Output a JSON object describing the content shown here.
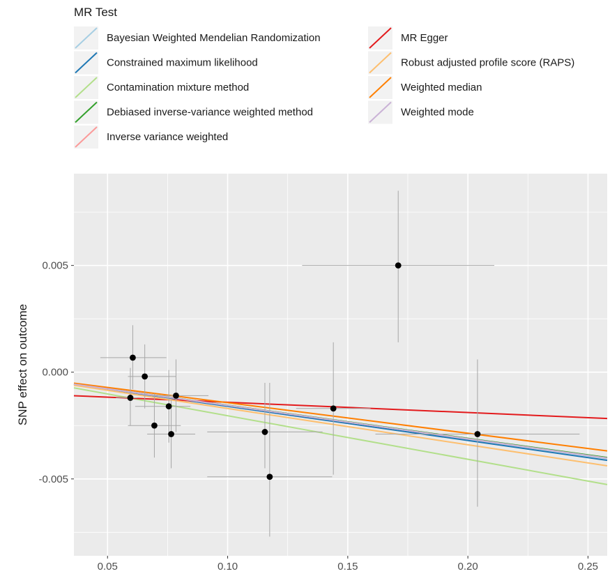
{
  "chart_data": {
    "type": "scatter",
    "title": "",
    "xlabel": "",
    "ylabel": "SNP effect on outcome",
    "xlim": [
      0.036,
      0.258
    ],
    "ylim": [
      -0.0086,
      0.0093
    ],
    "x_ticks": [
      0.05,
      0.1,
      0.15,
      0.2,
      0.25
    ],
    "x_tick_labels": [
      "0.05",
      "0.10",
      "0.15",
      "0.20",
      "0.25"
    ],
    "y_ticks": [
      -0.005,
      0.0,
      0.005
    ],
    "y_tick_labels": [
      "-0.005",
      "0.000",
      "0.005"
    ],
    "grid": true,
    "legend": {
      "title": "MR Test",
      "position": "top",
      "columns": 2
    },
    "points": [
      {
        "x": 0.0605,
        "y": 0.00068,
        "x_lo": 0.047,
        "x_hi": 0.0745,
        "y_lo": -0.0008,
        "y_hi": 0.0022
      },
      {
        "x": 0.0655,
        "y": -0.0002,
        "x_lo": 0.0585,
        "x_hi": 0.0785,
        "y_lo": -0.0017,
        "y_hi": 0.0013
      },
      {
        "x": 0.0595,
        "y": -0.0012,
        "x_lo": 0.0535,
        "x_hi": 0.0625,
        "y_lo": -0.0025,
        "y_hi": 0.0002
      },
      {
        "x": 0.0785,
        "y": -0.0011,
        "x_lo": 0.068,
        "x_hi": 0.092,
        "y_lo": -0.0028,
        "y_hi": 0.0006
      },
      {
        "x": 0.0755,
        "y": -0.0016,
        "x_lo": 0.0615,
        "x_hi": 0.0845,
        "y_lo": -0.0033,
        "y_hi": 0.0001
      },
      {
        "x": 0.0695,
        "y": -0.0025,
        "x_lo": 0.0585,
        "x_hi": 0.0805,
        "y_lo": -0.004,
        "y_hi": -0.001
      },
      {
        "x": 0.0765,
        "y": -0.0029,
        "x_lo": 0.0665,
        "x_hi": 0.0865,
        "y_lo": -0.0045,
        "y_hi": -0.0013
      },
      {
        "x": 0.1155,
        "y": -0.0028,
        "x_lo": 0.0915,
        "x_hi": 0.1395,
        "y_lo": -0.0045,
        "y_hi": -0.0005
      },
      {
        "x": 0.1175,
        "y": -0.0049,
        "x_lo": 0.0915,
        "x_hi": 0.1435,
        "y_lo": -0.0077,
        "y_hi": -0.0005
      },
      {
        "x": 0.144,
        "y": -0.0017,
        "x_lo": 0.1285,
        "x_hi": 0.1595,
        "y_lo": -0.0048,
        "y_hi": 0.0014
      },
      {
        "x": 0.171,
        "y": 0.005,
        "x_lo": 0.131,
        "x_hi": 0.211,
        "y_lo": 0.0014,
        "y_hi": 0.0085
      },
      {
        "x": 0.204,
        "y": -0.0029,
        "x_lo": 0.1615,
        "x_hi": 0.2465,
        "y_lo": -0.0063,
        "y_hi": 0.0006
      }
    ],
    "series": [
      {
        "name": "Bayesian Weighted Mendelian Randomization",
        "color": "#a6cee3",
        "slope": -0.0157,
        "intercept": 0.0
      },
      {
        "name": "Constrained maximum likelihood",
        "color": "#1f78b4",
        "slope": -0.016,
        "intercept": 0.0
      },
      {
        "name": "Contamination mixture method",
        "color": "#b2df8a",
        "slope": -0.0204,
        "intercept": 0.0
      },
      {
        "name": "Debiased inverse-variance weighted method",
        "color": "#33a02c",
        "slope": -0.0155,
        "intercept": 0.0
      },
      {
        "name": "Inverse variance weighted",
        "color": "#fb9a99",
        "slope": -0.0156,
        "intercept": 0.0
      },
      {
        "name": "MR Egger",
        "color": "#e31a1c",
        "slope": -0.0048,
        "intercept": -0.00093
      },
      {
        "name": "Robust adjusted profile score (RAPS)",
        "color": "#fdbf6f",
        "slope": -0.017,
        "intercept": 0.0
      },
      {
        "name": "Weighted median",
        "color": "#ff7f00",
        "slope": -0.0143,
        "intercept": 0.0
      },
      {
        "name": "Weighted mode",
        "color": "#cab2d6",
        "slope": -0.0156,
        "intercept": 0.0
      }
    ]
  }
}
